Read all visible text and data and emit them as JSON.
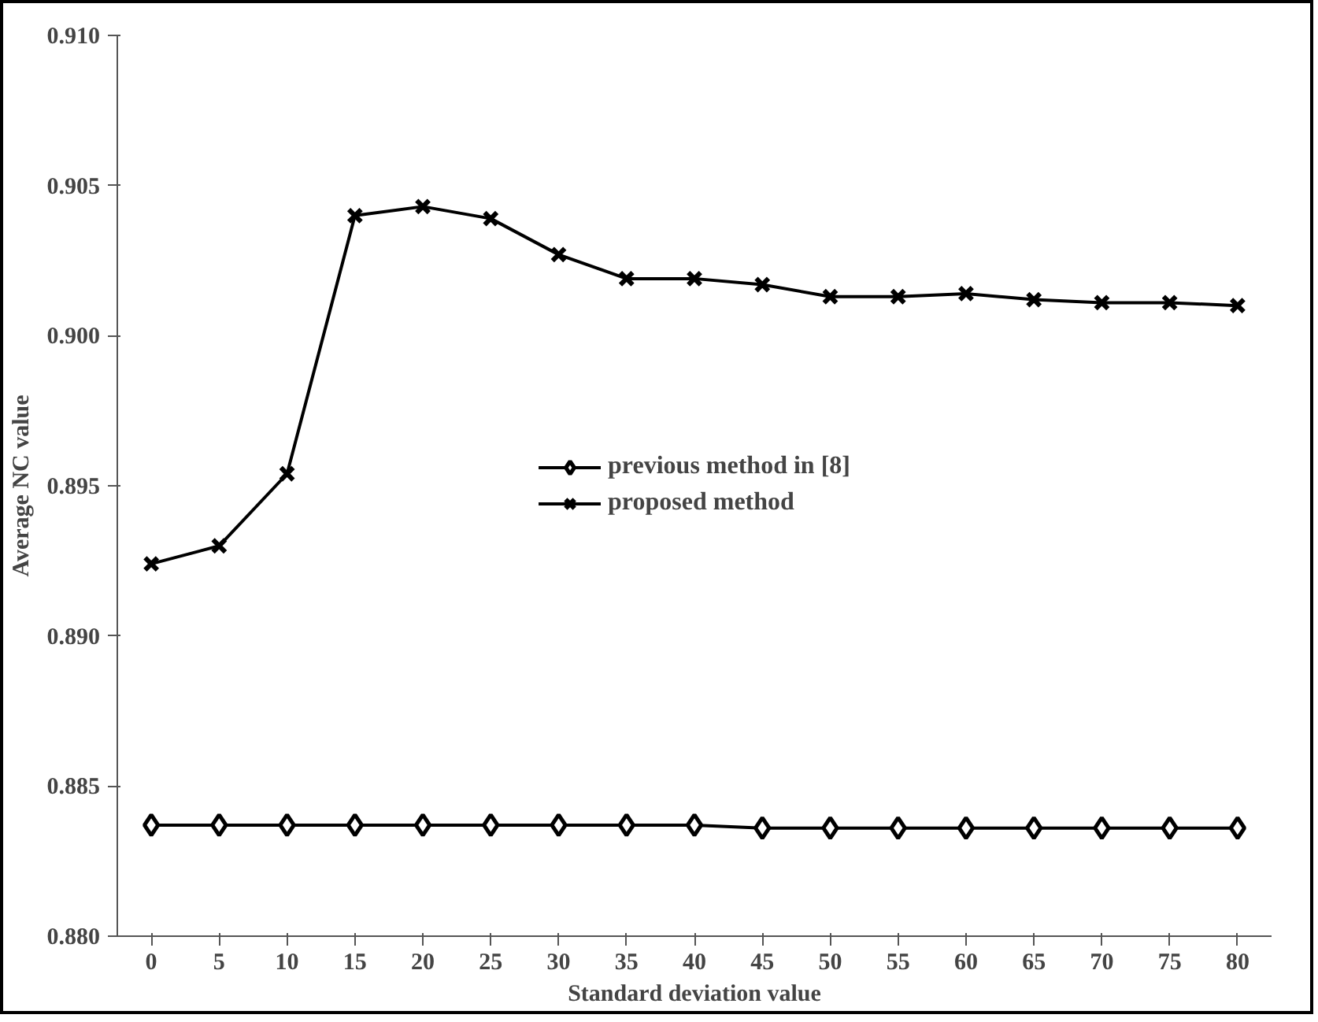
{
  "chart_data": {
    "type": "line",
    "xlabel": "Standard deviation value",
    "ylabel": "Average NC value",
    "categories": [
      "0",
      "5",
      "10",
      "15",
      "20",
      "25",
      "30",
      "35",
      "40",
      "45",
      "50",
      "55",
      "60",
      "65",
      "70",
      "75",
      "80"
    ],
    "ylim": [
      0.88,
      0.91
    ],
    "yticks": [
      {
        "value": 0.88,
        "label": "0.880"
      },
      {
        "value": 0.885,
        "label": "0.885"
      },
      {
        "value": 0.89,
        "label": "0.890"
      },
      {
        "value": 0.895,
        "label": "0.895"
      },
      {
        "value": 0.9,
        "label": "0.900"
      },
      {
        "value": 0.905,
        "label": "0.905"
      },
      {
        "value": 0.91,
        "label": "0.910"
      }
    ],
    "series": [
      {
        "name": "previous method in [8]",
        "color": "#000000",
        "marker": "diamond",
        "values": [
          0.8837,
          0.8837,
          0.8837,
          0.8837,
          0.8837,
          0.8837,
          0.8837,
          0.8837,
          0.8837,
          0.8836,
          0.8836,
          0.8836,
          0.8836,
          0.8836,
          0.8836,
          0.8836,
          0.8836
        ]
      },
      {
        "name": "proposed method",
        "color": "#000000",
        "marker": "cross",
        "values": [
          0.8924,
          0.893,
          0.8954,
          0.904,
          0.9043,
          0.9039,
          0.9027,
          0.9019,
          0.9019,
          0.9017,
          0.9013,
          0.9013,
          0.9014,
          0.9012,
          0.9011,
          0.9011,
          0.901
        ]
      }
    ],
    "legend": "center",
    "grid": false,
    "line_style": "solid"
  }
}
